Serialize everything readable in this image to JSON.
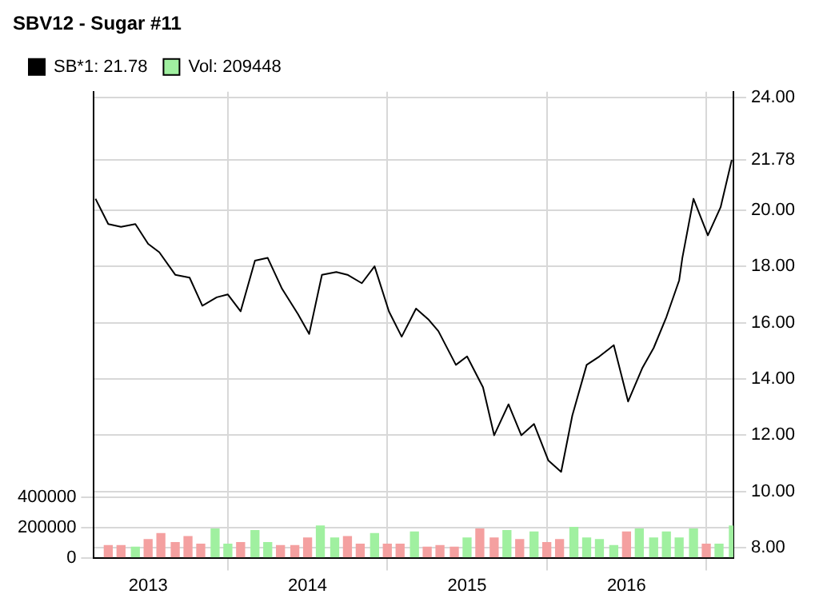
{
  "chart_data": {
    "type": "line",
    "title": "SBV12 - Sugar #11",
    "legend": "top left",
    "grid": true,
    "marker": "none",
    "xlim": [
      2012.66,
      2016.67
    ],
    "xticks": [
      2013,
      2014,
      2015,
      2016
    ],
    "ylim": [
      0,
      3080000
    ],
    "yticks": [
      0,
      200000,
      400000
    ],
    "y2lim": [
      7.65,
      24.2
    ],
    "y2ticks": [
      {
        "value": 8,
        "label": "8.00"
      },
      {
        "value": 10,
        "label": "10.00"
      },
      {
        "value": 12,
        "label": "12.00"
      },
      {
        "value": 14,
        "label": "14.00"
      },
      {
        "value": 16,
        "label": "16.00"
      },
      {
        "value": 18,
        "label": "18.00"
      },
      {
        "value": 20,
        "label": "20.00"
      },
      {
        "value": 21.78,
        "label": "21.78"
      },
      {
        "value": 24,
        "label": "24.00"
      }
    ],
    "series": [
      {
        "name": "SB*1: 21.78",
        "axis": "y2",
        "color": "#000000",
        "x": [
          2012.67,
          2012.75,
          2012.83,
          2012.92,
          2013.0,
          2013.07,
          2013.17,
          2013.26,
          2013.34,
          2013.43,
          2013.5,
          2013.58,
          2013.67,
          2013.75,
          2013.84,
          2013.94,
          2014.01,
          2014.09,
          2014.18,
          2014.25,
          2014.34,
          2014.42,
          2014.51,
          2014.59,
          2014.68,
          2014.76,
          2014.82,
          2014.93,
          2015.0,
          2015.1,
          2015.17,
          2015.26,
          2015.34,
          2015.42,
          2015.51,
          2015.59,
          2015.66,
          2015.75,
          2015.83,
          2015.92,
          2016.01,
          2016.1,
          2016.17,
          2016.25,
          2016.33,
          2016.35,
          2016.42,
          2016.51,
          2016.59,
          2016.66
        ],
        "values": [
          20.4,
          19.5,
          19.4,
          19.5,
          18.8,
          18.5,
          17.7,
          17.6,
          16.6,
          16.9,
          17.0,
          16.4,
          18.2,
          18.3,
          17.2,
          16.3,
          15.6,
          17.7,
          17.8,
          17.7,
          17.4,
          18.0,
          16.4,
          15.5,
          16.5,
          16.1,
          15.7,
          14.5,
          14.8,
          13.7,
          12.0,
          13.1,
          12.0,
          12.4,
          11.1,
          10.7,
          12.7,
          14.5,
          14.8,
          15.2,
          13.2,
          14.4,
          15.1,
          16.2,
          17.5,
          18.3,
          20.4,
          19.1,
          20.1,
          21.78
        ]
      },
      {
        "name": "Vol: 209448",
        "type": "bar",
        "axis": "y",
        "color": "#a0f0a0",
        "x": [
          2012.75,
          2012.83,
          2012.92,
          2013.0,
          2013.08,
          2013.17,
          2013.25,
          2013.33,
          2013.42,
          2013.5,
          2013.58,
          2013.67,
          2013.75,
          2013.83,
          2013.92,
          2014.0,
          2014.08,
          2014.17,
          2014.25,
          2014.33,
          2014.42,
          2014.5,
          2014.58,
          2014.67,
          2014.75,
          2014.83,
          2014.92,
          2015.0,
          2015.08,
          2015.17,
          2015.25,
          2015.33,
          2015.42,
          2015.5,
          2015.58,
          2015.67,
          2015.75,
          2015.83,
          2015.92,
          2016.0,
          2016.08,
          2016.17,
          2016.25,
          2016.33,
          2016.42,
          2016.5,
          2016.58,
          2016.67
        ],
        "values": [
          80000,
          80000,
          70000,
          120000,
          160000,
          100000,
          140000,
          90000,
          190000,
          90000,
          100000,
          180000,
          100000,
          80000,
          80000,
          130000,
          210000,
          130000,
          140000,
          90000,
          160000,
          90000,
          90000,
          170000,
          70000,
          80000,
          70000,
          130000,
          190000,
          130000,
          180000,
          120000,
          170000,
          100000,
          120000,
          200000,
          130000,
          120000,
          80000,
          170000,
          190000,
          130000,
          170000,
          130000,
          190000,
          90000,
          90000,
          209448
        ],
        "colors": [
          "#f4a0a0",
          "#f4a0a0",
          "#a0f0a0",
          "#f4a0a0",
          "#f4a0a0",
          "#f4a0a0",
          "#f4a0a0",
          "#f4a0a0",
          "#a0f0a0",
          "#a0f0a0",
          "#f4a0a0",
          "#a0f0a0",
          "#a0f0a0",
          "#f4a0a0",
          "#f4a0a0",
          "#f4a0a0",
          "#a0f0a0",
          "#a0f0a0",
          "#f4a0a0",
          "#f4a0a0",
          "#a0f0a0",
          "#f4a0a0",
          "#f4a0a0",
          "#a0f0a0",
          "#f4a0a0",
          "#f4a0a0",
          "#f4a0a0",
          "#a0f0a0",
          "#f4a0a0",
          "#f4a0a0",
          "#a0f0a0",
          "#f4a0a0",
          "#a0f0a0",
          "#f4a0a0",
          "#f4a0a0",
          "#a0f0a0",
          "#a0f0a0",
          "#a0f0a0",
          "#a0f0a0",
          "#f4a0a0",
          "#a0f0a0",
          "#a0f0a0",
          "#a0f0a0",
          "#a0f0a0",
          "#a0f0a0",
          "#f4a0a0",
          "#a0f0a0",
          "#a0f0a0"
        ]
      }
    ]
  }
}
